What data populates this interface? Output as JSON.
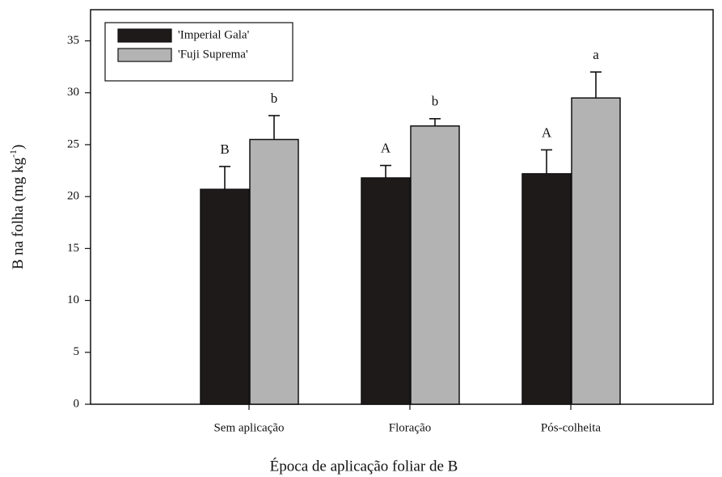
{
  "chart_data": {
    "type": "bar",
    "x_label": "Época de aplicação foliar de B",
    "y_label": {
      "text": "B na folha (mg kg",
      "superscript": "-1",
      "suffix": ")"
    },
    "categories": [
      "Sem aplicação",
      "Floração",
      "Pós-colheita"
    ],
    "series": [
      {
        "name": "'Imperial Gala'",
        "color": "#1e1a1a",
        "values": [
          20.7,
          21.8,
          22.2
        ],
        "errors": [
          2.2,
          1.2,
          2.3
        ],
        "letters": [
          "B",
          "A",
          "A"
        ]
      },
      {
        "name": "'Fuji Suprema'",
        "color": "#b3b3b3",
        "values": [
          25.5,
          26.8,
          29.5
        ],
        "errors": [
          2.3,
          0.7,
          2.5
        ],
        "letters": [
          "b",
          "b",
          "a"
        ]
      }
    ],
    "ylim": [
      0,
      38
    ],
    "yticks": [
      0,
      5,
      10,
      15,
      20,
      25,
      30,
      35
    ],
    "legend": "upper-left"
  }
}
